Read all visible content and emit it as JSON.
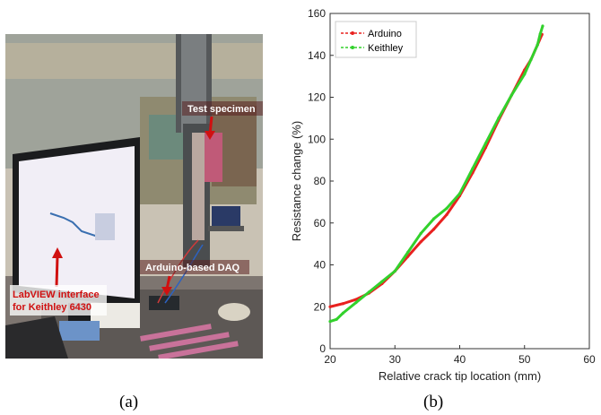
{
  "figure": {
    "panel_a_label": "(a)",
    "panel_b_label": "(b)"
  },
  "photo": {
    "annotations": {
      "test_specimen": "Test specimen",
      "daq": "Arduino-based DAQ",
      "labview_line1": "LabVIEW interface",
      "labview_line2": "for Keithley 6430"
    },
    "annotation_color": "#d01010"
  },
  "chart_data": {
    "type": "line",
    "xlabel": "Relative crack tip location (mm)",
    "ylabel": "Resistance change (%)",
    "xlim": [
      20,
      60
    ],
    "ylim": [
      0,
      160
    ],
    "xticks": [
      "20",
      "30",
      "40",
      "50",
      "60"
    ],
    "yticks": [
      "0",
      "20",
      "40",
      "60",
      "80",
      "100",
      "120",
      "140",
      "160"
    ],
    "grid": false,
    "legend_position": "top-left",
    "series": [
      {
        "name": "Arduino",
        "color": "#e8211f",
        "x": [
          20,
          22,
          24,
          26,
          28,
          30,
          32,
          34,
          36,
          38,
          40,
          42,
          44,
          46,
          48,
          50,
          51,
          52,
          52.7
        ],
        "y": [
          20,
          21.5,
          23.5,
          26.5,
          31,
          37,
          44,
          51,
          57,
          64,
          73,
          84,
          96,
          109,
          121,
          133,
          138,
          145,
          150
        ]
      },
      {
        "name": "Keithley",
        "color": "#32d12c",
        "x": [
          20,
          21,
          22,
          24,
          26,
          28,
          30,
          32,
          34,
          36,
          38,
          40,
          42,
          44,
          46,
          48,
          50,
          51,
          52,
          52.4,
          52.8
        ],
        "y": [
          13,
          14,
          17,
          22,
          27,
          32,
          37,
          46,
          55,
          62,
          67,
          74,
          86,
          98,
          110,
          121,
          131,
          138,
          145,
          150,
          154
        ]
      }
    ]
  }
}
